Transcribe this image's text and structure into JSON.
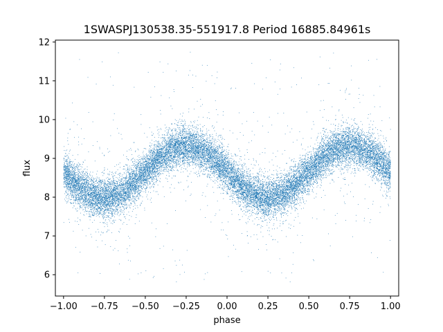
{
  "chart_data": {
    "type": "scatter",
    "title": "1SWASPJ130538.35-551917.8 Period 16885.84961s",
    "xlabel": "phase",
    "ylabel": "flux",
    "xlim": [
      -1.05,
      1.05
    ],
    "ylim": [
      5.45,
      12.05
    ],
    "xticks": [
      -1.0,
      -0.75,
      -0.5,
      -0.25,
      0.0,
      0.25,
      0.5,
      0.75,
      1.0
    ],
    "xtick_labels": [
      "−1.00",
      "−0.75",
      "−0.50",
      "−0.25",
      "0.00",
      "0.25",
      "0.50",
      "0.75",
      "1.00"
    ],
    "yticks": [
      6,
      7,
      8,
      9,
      10,
      11,
      12
    ],
    "ytick_labels": [
      "6",
      "7",
      "8",
      "9",
      "10",
      "11",
      "12"
    ],
    "grid": false,
    "legend": "none",
    "point_color": "#1f77b4",
    "series": [
      {
        "x_range": [
          -1.0,
          1.0
        ],
        "points": 20000,
        "model": "flux ≈ 8.65 + 0.67·sin(2π·(phase + 0.5))",
        "mean_flux": 8.65,
        "amplitude": 0.67,
        "scatter_sigma": 0.25,
        "min_flux_near_phase": [
          -0.75,
          0.25
        ],
        "max_flux_near_phase": [
          -0.25,
          0.75
        ],
        "outlier_range": [
          5.8,
          11.8
        ]
      }
    ]
  }
}
